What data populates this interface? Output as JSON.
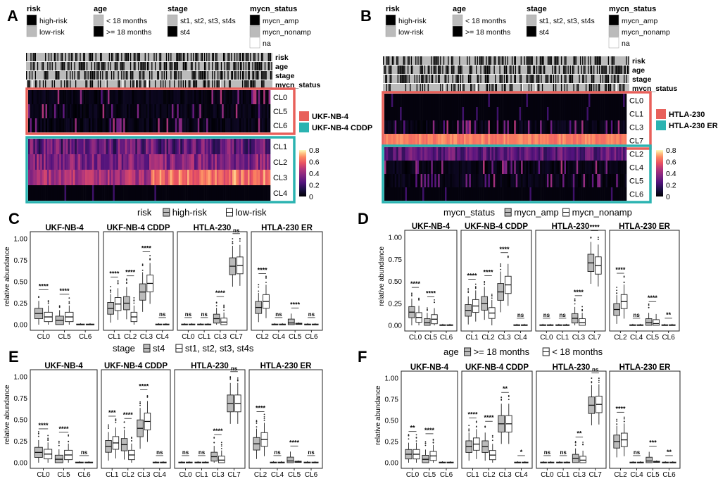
{
  "panel_letters": [
    "A",
    "B",
    "C",
    "D",
    "E",
    "F"
  ],
  "legend_titles": {
    "risk": "risk",
    "age": "age",
    "stage": "stage",
    "mycn": "mycn_status"
  },
  "legend_items": {
    "risk": [
      "high-risk",
      "low-risk"
    ],
    "age": [
      "< 18 months",
      ">= 18 months"
    ],
    "stage": [
      "st1, st2, st3, st4s",
      "st4"
    ],
    "mycn": [
      "mycn_amp",
      "mycn_nonamp",
      "na"
    ]
  },
  "annotation_tracks": [
    "risk",
    "age",
    "stage",
    "mycn_status"
  ],
  "heatmap_A": {
    "group1": {
      "name": "UKF-NB-4",
      "rows": [
        "CL0",
        "CL5",
        "CL6"
      ],
      "color": "#e8605a"
    },
    "group2": {
      "name": "UKF-NB-4 CDDP",
      "rows": [
        "CL1",
        "CL2",
        "CL3",
        "CL4"
      ],
      "color": "#2bb3b1"
    }
  },
  "heatmap_B": {
    "group1": {
      "name": "HTLA-230",
      "rows": [
        "CL0",
        "CL1",
        "CL3",
        "CL7"
      ],
      "color": "#e8605a"
    },
    "group2": {
      "name": "HTLA-230 ER",
      "rows": [
        "CL2",
        "CL4",
        "CL5",
        "CL6"
      ],
      "color": "#2bb3b1"
    }
  },
  "colorbar_ticks": [
    "0.8",
    "0.6",
    "0.4",
    "0.2",
    "0"
  ],
  "chart_data": [
    {
      "type": "box",
      "panel": "C",
      "title": "risk",
      "legend": [
        "high-risk",
        "low-risk"
      ],
      "ylabel": "relative abundance",
      "yticks": [
        "0.00",
        "0.25",
        "0.50",
        "0.75",
        "1.00"
      ],
      "ylim": [
        0,
        1
      ],
      "facets": [
        {
          "name": "UKF-NB-4",
          "clusters": [
            "CL0",
            "CL5",
            "CL6"
          ],
          "sig": [
            "****",
            "****",
            ""
          ],
          "med": [
            [
              0.13,
              0.09
            ],
            [
              0.05,
              0.09
            ],
            [
              0.0,
              0.0
            ]
          ]
        },
        {
          "name": "UKF-NB-4 CDDP",
          "clusters": [
            "CL1",
            "CL2",
            "CL3",
            "CL4"
          ],
          "sig": [
            "****",
            "****",
            "****",
            "ns"
          ],
          "med": [
            [
              0.19,
              0.24
            ],
            [
              0.25,
              0.09
            ],
            [
              0.38,
              0.48
            ],
            [
              0.0,
              0.0
            ]
          ]
        },
        {
          "name": "HTLA-230",
          "clusters": [
            "CL0",
            "CL1",
            "CL3",
            "CL7"
          ],
          "sig": [
            "ns",
            "ns",
            "****",
            "ns"
          ],
          "med": [
            [
              0.0,
              0.0
            ],
            [
              0.0,
              0.0
            ],
            [
              0.07,
              0.03
            ],
            [
              0.68,
              0.69
            ]
          ]
        },
        {
          "name": "HTLA-230 ER",
          "clusters": [
            "CL2",
            "CL4",
            "CL5",
            "CL6"
          ],
          "sig": [
            "****",
            "ns",
            "****",
            "ns"
          ],
          "med": [
            [
              0.2,
              0.27
            ],
            [
              0.0,
              0.0
            ],
            [
              0.02,
              0.01
            ],
            [
              0.0,
              0.0
            ]
          ]
        }
      ]
    },
    {
      "type": "box",
      "panel": "D",
      "title": "mycn_status",
      "legend": [
        "mycn_amp",
        "mycn_nonamp"
      ],
      "ylabel": "relative abundance",
      "yticks": [
        "0.00",
        "0.25",
        "0.50",
        "0.75",
        "1.00"
      ],
      "ylim": [
        0,
        1
      ],
      "facets": [
        {
          "name": "UKF-NB-4",
          "clusters": [
            "CL0",
            "CL5",
            "CL6"
          ],
          "sig": [
            "****",
            "****",
            ""
          ],
          "med": [
            [
              0.15,
              0.09
            ],
            [
              0.03,
              0.07
            ],
            [
              0.0,
              0.0
            ]
          ]
        },
        {
          "name": "UKF-NB-4 CDDP",
          "clusters": [
            "CL1",
            "CL2",
            "CL3",
            "CL4"
          ],
          "sig": [
            "****",
            "****",
            "****",
            "ns"
          ],
          "med": [
            [
              0.17,
              0.22
            ],
            [
              0.25,
              0.14
            ],
            [
              0.38,
              0.46
            ],
            [
              0.0,
              0.0
            ]
          ]
        },
        {
          "name": "HTLA-230",
          "clusters": [
            "CL0",
            "CL1",
            "CL3",
            "CL7"
          ],
          "sig": [
            "ns",
            "ns",
            "****",
            "****"
          ],
          "med": [
            [
              0.0,
              0.0
            ],
            [
              0.0,
              0.0
            ],
            [
              0.08,
              0.03
            ],
            [
              0.71,
              0.68
            ]
          ]
        },
        {
          "name": "HTLA-230 ER",
          "clusters": [
            "CL2",
            "CL4",
            "CL5",
            "CL6"
          ],
          "sig": [
            "****",
            "ns",
            "****",
            "**"
          ],
          "med": [
            [
              0.18,
              0.27
            ],
            [
              0.0,
              0.0
            ],
            [
              0.03,
              0.02
            ],
            [
              0.0,
              0.0
            ]
          ]
        }
      ]
    },
    {
      "type": "box",
      "panel": "E",
      "title": "stage",
      "legend": [
        "st4",
        "st1, st2, st3, st4s"
      ],
      "ylabel": "relative abundance",
      "yticks": [
        "0.00",
        "0.25",
        "0.50",
        "0.75",
        "1.00"
      ],
      "ylim": [
        0,
        1
      ],
      "facets": [
        {
          "name": "UKF-NB-4",
          "clusters": [
            "CL0",
            "CL5",
            "CL6"
          ],
          "sig": [
            "****",
            "****",
            "ns"
          ],
          "med": [
            [
              0.12,
              0.1
            ],
            [
              0.04,
              0.09
            ],
            [
              0.0,
              0.0
            ]
          ]
        },
        {
          "name": "UKF-NB-4 CDDP",
          "clusters": [
            "CL1",
            "CL2",
            "CL3",
            "CL4"
          ],
          "sig": [
            "***",
            "****",
            "****",
            "ns"
          ],
          "med": [
            [
              0.19,
              0.23
            ],
            [
              0.21,
              0.09
            ],
            [
              0.4,
              0.48
            ],
            [
              0.0,
              0.0
            ]
          ]
        },
        {
          "name": "HTLA-230",
          "clusters": [
            "CL0",
            "CL1",
            "CL3",
            "CL7"
          ],
          "sig": [
            "ns",
            "ns",
            "****",
            "ns"
          ],
          "med": [
            [
              0.0,
              0.0
            ],
            [
              0.0,
              0.0
            ],
            [
              0.07,
              0.03
            ],
            [
              0.69,
              0.69
            ]
          ]
        },
        {
          "name": "HTLA-230 ER",
          "clusters": [
            "CL2",
            "CL4",
            "CL5",
            "CL6"
          ],
          "sig": [
            "****",
            "ns",
            "****",
            "ns"
          ],
          "med": [
            [
              0.22,
              0.27
            ],
            [
              0.0,
              0.0
            ],
            [
              0.02,
              0.01
            ],
            [
              0.0,
              0.0
            ]
          ]
        }
      ]
    },
    {
      "type": "box",
      "panel": "F",
      "title": "age",
      "legend": [
        ">= 18 months",
        "< 18 months"
      ],
      "ylabel": "relative abundance",
      "yticks": [
        "0.00",
        "0.25",
        "0.50",
        "0.75",
        "1.00"
      ],
      "ylim": [
        0,
        1
      ],
      "facets": [
        {
          "name": "UKF-NB-4",
          "clusters": [
            "CL0",
            "CL5",
            "CL6"
          ],
          "sig": [
            "**",
            "****",
            ""
          ],
          "med": [
            [
              0.1,
              0.1
            ],
            [
              0.04,
              0.08
            ],
            [
              0.0,
              0.0
            ]
          ]
        },
        {
          "name": "UKF-NB-4 CDDP",
          "clusters": [
            "CL1",
            "CL2",
            "CL3",
            "CL4"
          ],
          "sig": [
            "****",
            "****",
            "**",
            "*"
          ],
          "med": [
            [
              0.19,
              0.22
            ],
            [
              0.19,
              0.09
            ],
            [
              0.46,
              0.46
            ],
            [
              0.0,
              0.0
            ]
          ]
        },
        {
          "name": "HTLA-230",
          "clusters": [
            "CL0",
            "CL1",
            "CL3",
            "CL7"
          ],
          "sig": [
            "ns",
            "ns",
            "**",
            "ns"
          ],
          "med": [
            [
              0.0,
              0.0
            ],
            [
              0.0,
              0.0
            ],
            [
              0.05,
              0.03
            ],
            [
              0.68,
              0.69
            ]
          ]
        },
        {
          "name": "HTLA-230 ER",
          "clusters": [
            "CL2",
            "CL4",
            "CL5",
            "CL6"
          ],
          "sig": [
            "****",
            "ns",
            "***",
            "**"
          ],
          "med": [
            [
              0.25,
              0.27
            ],
            [
              0.0,
              0.0
            ],
            [
              0.02,
              0.01
            ],
            [
              0.0,
              0.0
            ]
          ]
        }
      ]
    }
  ]
}
